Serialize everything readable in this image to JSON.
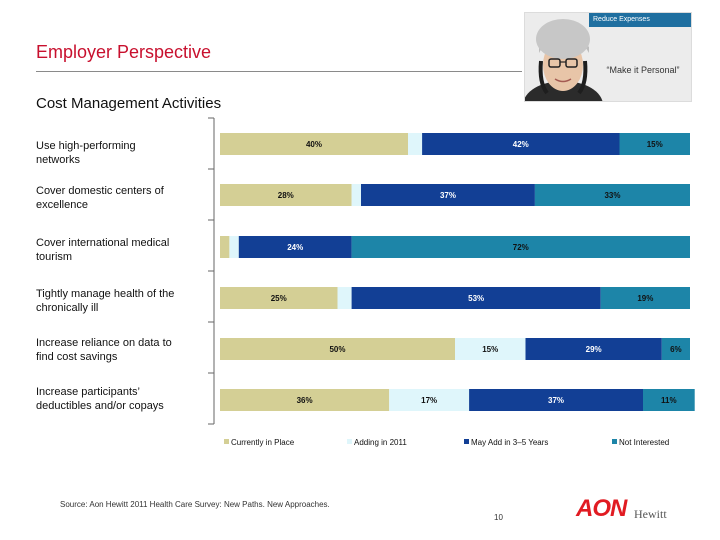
{
  "header": {
    "title": "Employer Perspective",
    "photo_banner": "Reduce Expenses",
    "photo_quote": "“Make it Personal”"
  },
  "subtitle": "Cost Management Activities",
  "footer": {
    "source": "Source: Aon Hewitt 2011 Health Care Survey: New Paths. New Approaches.",
    "page_number": "10",
    "logo_aon": "AON",
    "logo_hewitt": "Hewitt"
  },
  "colors": {
    "currently": "#d4cf95",
    "adding": "#dff6fb",
    "may_add": "#123f95",
    "not_interested": "#1d85a8",
    "title_red": "#c8102e"
  },
  "chart_data": {
    "type": "bar",
    "orientation": "horizontal",
    "stacked": true,
    "categories": [
      [
        "Use high-performing",
        "networks"
      ],
      [
        "Cover domestic centers of",
        "excellence"
      ],
      [
        "Cover international medical",
        "tourism"
      ],
      [
        "Tightly manage health of the",
        "chronically ill"
      ],
      [
        "Increase reliance on data to",
        "find cost savings"
      ],
      [
        "Increase participants’",
        "deductibles and/or copays"
      ]
    ],
    "series": [
      {
        "name": "Currently in Place",
        "values": [
          40,
          28,
          2,
          25,
          50,
          36
        ],
        "labels": [
          "40%",
          "28%",
          "",
          "25%",
          "50%",
          "36%"
        ]
      },
      {
        "name": "Adding in 2011",
        "values": [
          3,
          2,
          2,
          3,
          15,
          17
        ],
        "labels": [
          "",
          "",
          "",
          "",
          "15%",
          "17%"
        ]
      },
      {
        "name": "May Add in 3–5 Years",
        "values": [
          42,
          37,
          24,
          53,
          29,
          37
        ],
        "labels": [
          "42%",
          "37%",
          "24%",
          "53%",
          "29%",
          "37%"
        ]
      },
      {
        "name": "Not Interested",
        "values": [
          15,
          33,
          72,
          19,
          6,
          11
        ],
        "labels": [
          "15%",
          "33%",
          "72%",
          "19%",
          "6%",
          "11%"
        ]
      }
    ],
    "xlim": [
      0,
      100
    ],
    "legend_position": "bottom",
    "grid": false
  }
}
